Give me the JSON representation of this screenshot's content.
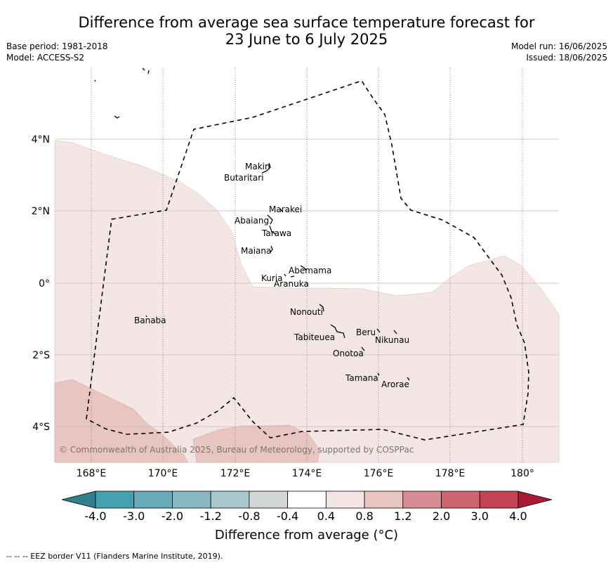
{
  "header": {
    "title_line1": "Difference from average sea surface temperature forecast for",
    "title_line2": "23 June to 6 July 2025",
    "base_period": "Base period: 1981-2018",
    "model": "Model: ACCESS-S2",
    "model_run": "Model run: 16/06/2025",
    "issued": "Issued: 18/06/2025"
  },
  "axes": {
    "lat_labels": [
      "4°N",
      "2°N",
      "0°",
      "2°S",
      "4°S"
    ],
    "lon_labels": [
      "168°E",
      "170°E",
      "172°E",
      "174°E",
      "176°E",
      "178°E",
      "180°"
    ]
  },
  "islands": {
    "makin": "Makin",
    "butaritari": "Butaritari",
    "marakei": "Marakei",
    "abaiang": "Abaiang",
    "tarawa": "Tarawa",
    "maiana": "Maiana",
    "abemama": "Abemama",
    "kuria": "Kuria",
    "aranuka": "Aranuka",
    "nonouti": "Nonouti",
    "banaba": "Banaba",
    "beru": "Beru",
    "tabiteuea": "Tabiteuea",
    "nikunau": "Nikunau",
    "onotoa": "Onotoa",
    "tamana": "Tamana",
    "arorae": "Arorae"
  },
  "copyright": "© Commonwealth of Australia 2025, Bureau of Meteorology, supported by COSPPac",
  "colorbar": {
    "title": "Difference from average (°C)",
    "ticks": [
      "-4.0",
      "-3.0",
      "-2.0",
      "-1.2",
      "-0.8",
      "-0.4",
      "0.4",
      "0.8",
      "1.2",
      "2.0",
      "3.0",
      "4.0"
    ],
    "colors": [
      "#2f7f8c",
      "#45a0b0",
      "#67abb9",
      "#88b8c3",
      "#a9c8cc",
      "#d3d6d6",
      "#ffffff",
      "#f4e6e5",
      "#e8c5c1",
      "#d98c94",
      "#cc6670",
      "#c24352",
      "#a81a33"
    ]
  },
  "footer": {
    "eez_note": "--  --  -- EEZ border V11 (Flanders Marine Institute, 2019)."
  }
}
